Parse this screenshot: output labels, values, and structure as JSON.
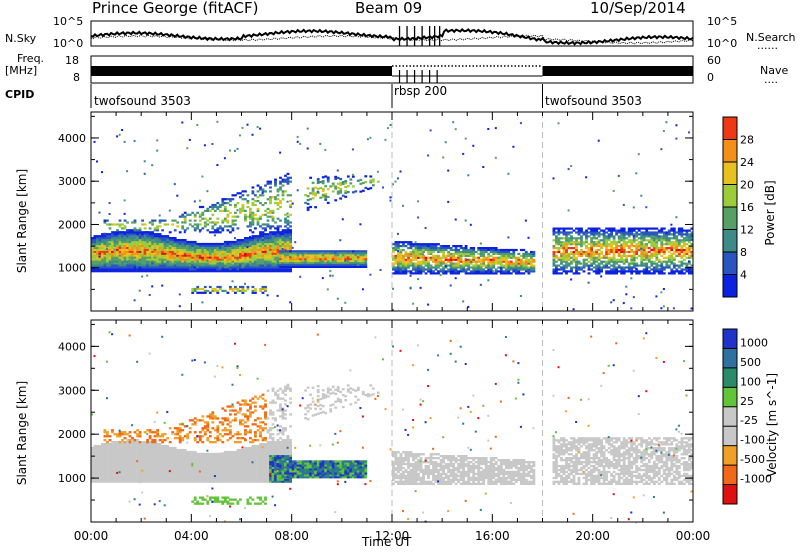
{
  "header": {
    "station": "Prince George (fitACF)",
    "beam": "Beam 09",
    "date": "10/Sep/2014"
  },
  "labels": {
    "nsky": "N.Sky",
    "nsearch": "N.Search",
    "freq": "Freq.",
    "freq_unit": "[MHz]",
    "nave": "Nave",
    "cpid": "CPID",
    "dots": "......",
    "dots_short": "....",
    "noise_top": "10^5",
    "noise_bottom": "10^0",
    "noise_top_r": "10^5",
    "noise_bottom_r": "10^0",
    "freq_top": "18",
    "freq_bottom": "8",
    "nave_top": "60",
    "nave_bottom": "0",
    "xlabel": "Time UT",
    "ylabel": "Slant Range [km]",
    "power_label": "Power [dB]",
    "velocity_label": "Velocity [m s^-1]"
  },
  "cpid_segments": [
    {
      "label": "twofsound 3503",
      "start_h": 0,
      "end_h": 12
    },
    {
      "label": "rbsp 200",
      "start_h": 12,
      "end_h": 18
    },
    {
      "label": "twofsound 3503",
      "start_h": 18,
      "end_h": 24
    }
  ],
  "chart_data": [
    {
      "type": "heatmap",
      "name": "power",
      "xlabel": "Time UT",
      "ylabel": "Slant Range [km]",
      "xlim": [
        0,
        24
      ],
      "ylim": [
        0,
        4600
      ],
      "xticks": [
        "00:00",
        "04:00",
        "08:00",
        "12:00",
        "16:00",
        "20:00",
        "00:00"
      ],
      "yticks": [
        1000,
        2000,
        3000,
        4000
      ],
      "colorbar": {
        "label": "Power [dB]",
        "ticks": [
          4,
          8,
          12,
          16,
          20,
          24,
          28
        ],
        "range": [
          0,
          30
        ]
      }
    },
    {
      "type": "heatmap",
      "name": "velocity",
      "xlabel": "Time UT",
      "ylabel": "Slant Range [km]",
      "xlim": [
        0,
        24
      ],
      "ylim": [
        0,
        4600
      ],
      "xticks": [
        "00:00",
        "04:00",
        "08:00",
        "12:00",
        "16:00",
        "20:00",
        "00:00"
      ],
      "yticks": [
        1000,
        2000,
        3000,
        4000
      ],
      "colorbar": {
        "label": "Velocity [m s^-1]",
        "ticks": [
          1000,
          500,
          100,
          25,
          -25,
          -100,
          -500,
          -1000
        ]
      }
    }
  ],
  "colors": {
    "power_scale": [
      "#0b22e0",
      "#2a55c0",
      "#3d8a88",
      "#55a067",
      "#9ccc3a",
      "#e8c020",
      "#f49019",
      "#ee3a14",
      "#dd0a0a"
    ],
    "velocity_scale": [
      "#2032c8",
      "#2e70a0",
      "#2a8a6a",
      "#62c43a",
      "#c8c8c8",
      "#c8c8c8",
      "#f0a028",
      "#f06818",
      "#e01010"
    ]
  }
}
